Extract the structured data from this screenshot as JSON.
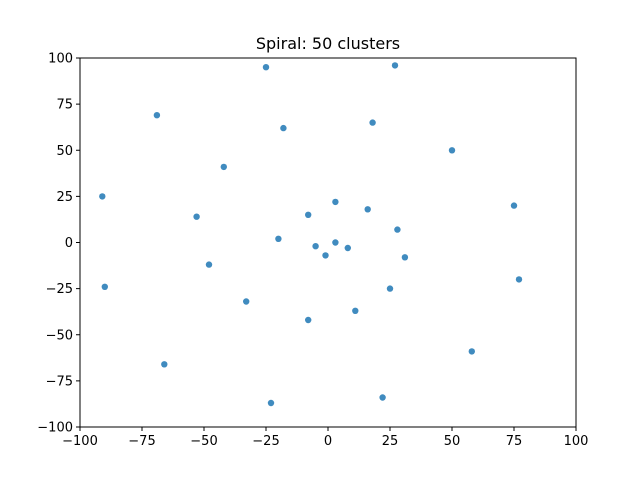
{
  "chart_data": {
    "type": "scatter",
    "title": "Spiral: 50 clusters",
    "xlabel": "",
    "ylabel": "",
    "xlim": [
      -100,
      100
    ],
    "ylim": [
      -100,
      100
    ],
    "xticks": [
      -100,
      -75,
      -50,
      -25,
      0,
      25,
      50,
      75,
      100
    ],
    "yticks": [
      -100,
      -75,
      -50,
      -25,
      0,
      25,
      50,
      75,
      100
    ],
    "grid": false,
    "color": "#1f77b4",
    "series": [
      {
        "points": [
          [
            -25,
            95
          ],
          [
            27,
            96
          ],
          [
            -69,
            69
          ],
          [
            -18,
            62
          ],
          [
            18,
            65
          ],
          [
            50,
            50
          ],
          [
            -42,
            41
          ],
          [
            -91,
            25
          ],
          [
            -8,
            15
          ],
          [
            3,
            22
          ],
          [
            16,
            18
          ],
          [
            -53,
            14
          ],
          [
            28,
            7
          ],
          [
            -20,
            2
          ],
          [
            3,
            0
          ],
          [
            -5,
            -2
          ],
          [
            8,
            -3
          ],
          [
            -1,
            -7
          ],
          [
            31,
            -8
          ],
          [
            -48,
            -12
          ],
          [
            75,
            20
          ],
          [
            -90,
            -24
          ],
          [
            25,
            -25
          ],
          [
            77,
            -20
          ],
          [
            -33,
            -32
          ],
          [
            -8,
            -42
          ],
          [
            11,
            -37
          ],
          [
            58,
            -59
          ],
          [
            -66,
            -66
          ],
          [
            -23,
            -87
          ],
          [
            22,
            -84
          ]
        ]
      }
    ]
  }
}
